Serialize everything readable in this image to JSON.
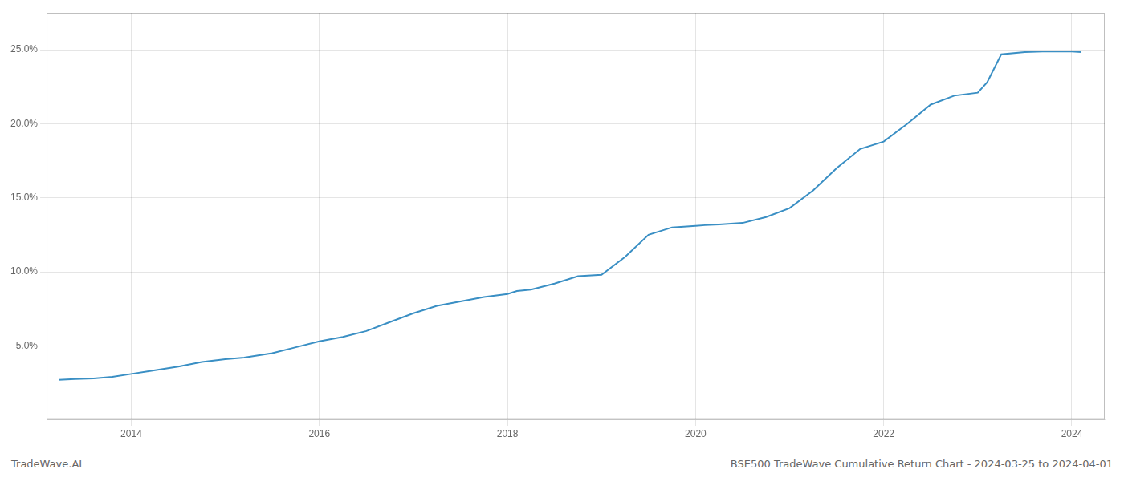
{
  "chart_data": {
    "type": "line",
    "title": "BSE500 TradeWave Cumulative Return Chart - 2024-03-25 to 2024-04-01",
    "annotations": [
      "TradeWave.AI"
    ],
    "color": "#3a8fc4",
    "grid": true,
    "x": [
      2013.23,
      2013.4,
      2013.6,
      2013.8,
      2014.0,
      2014.2,
      2014.5,
      2014.75,
      2015.0,
      2015.2,
      2015.5,
      2015.75,
      2016.0,
      2016.25,
      2016.5,
      2016.75,
      2017.0,
      2017.25,
      2017.5,
      2017.75,
      2018.0,
      2018.1,
      2018.25,
      2018.5,
      2018.75,
      2019.0,
      2019.25,
      2019.5,
      2019.75,
      2020.0,
      2020.1,
      2020.25,
      2020.5,
      2020.75,
      2021.0,
      2021.25,
      2021.5,
      2021.75,
      2022.0,
      2022.25,
      2022.5,
      2022.75,
      2023.0,
      2023.1,
      2023.25,
      2023.5,
      2023.75,
      2024.0,
      2024.1
    ],
    "values": [
      2.7,
      2.75,
      2.8,
      2.9,
      3.1,
      3.3,
      3.6,
      3.9,
      4.1,
      4.2,
      4.5,
      4.9,
      5.3,
      5.6,
      6.0,
      6.6,
      7.2,
      7.7,
      8.0,
      8.3,
      8.5,
      8.7,
      8.8,
      9.2,
      9.7,
      9.8,
      11.0,
      12.5,
      13.0,
      13.1,
      13.15,
      13.2,
      13.3,
      13.7,
      14.3,
      15.5,
      17.0,
      18.3,
      18.8,
      20.0,
      21.3,
      21.9,
      22.1,
      22.8,
      24.7,
      24.85,
      24.9,
      24.88,
      24.85
    ],
    "xlim": [
      2013.1,
      2024.35
    ],
    "xticks": [
      2014,
      2016,
      2018,
      2020,
      2022,
      2024
    ],
    "ylim": [
      0,
      27.5
    ],
    "yticks": [
      {
        "value": 5.0,
        "label": "5.0%"
      },
      {
        "value": 10.0,
        "label": "10.0%"
      },
      {
        "value": 15.0,
        "label": "15.0%"
      },
      {
        "value": 20.0,
        "label": "20.0%"
      },
      {
        "value": 25.0,
        "label": "25.0%"
      }
    ]
  }
}
